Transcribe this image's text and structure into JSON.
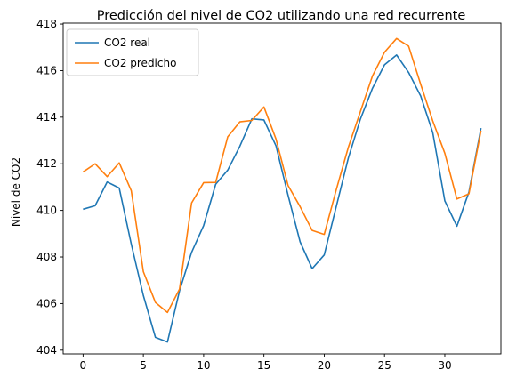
{
  "chart_data": {
    "type": "line",
    "title": "Predicción del nivel de CO2 utilizando una red recurrente",
    "xlabel": "",
    "ylabel": "Nivel de CO2",
    "xlim": [
      -1.65,
      34.65
    ],
    "ylim": [
      403.84,
      418.04
    ],
    "xticks": [
      0,
      5,
      10,
      15,
      20,
      25,
      30
    ],
    "yticks": [
      404,
      406,
      408,
      410,
      412,
      414,
      416,
      418
    ],
    "x": [
      0,
      1,
      2,
      3,
      4,
      5,
      6,
      7,
      8,
      9,
      10,
      11,
      12,
      13,
      14,
      15,
      16,
      17,
      18,
      19,
      20,
      21,
      22,
      23,
      24,
      25,
      26,
      27,
      28,
      29,
      30,
      31,
      32,
      33
    ],
    "series": [
      {
        "name": "CO2 real",
        "color": "#1f77b4",
        "values": [
          410.05,
          410.2,
          411.22,
          410.96,
          408.55,
          406.35,
          404.55,
          404.35,
          406.55,
          408.2,
          409.35,
          411.12,
          411.73,
          412.75,
          413.93,
          413.88,
          412.77,
          410.65,
          408.65,
          407.5,
          408.09,
          410.17,
          412.25,
          413.92,
          415.24,
          416.25,
          416.67,
          415.92,
          414.91,
          413.34,
          410.41,
          409.32,
          410.79,
          413.53
        ]
      },
      {
        "name": "CO2 predicho",
        "color": "#ff7f0e",
        "values": [
          411.65,
          412.0,
          411.45,
          412.04,
          410.84,
          407.37,
          406.05,
          405.62,
          406.62,
          410.32,
          411.19,
          411.2,
          413.16,
          413.8,
          413.86,
          414.44,
          413.06,
          411.07,
          410.16,
          409.14,
          408.97,
          410.89,
          412.71,
          414.24,
          415.77,
          416.79,
          417.38,
          417.05,
          415.41,
          413.84,
          412.45,
          410.49,
          410.71,
          413.42
        ]
      }
    ],
    "legend": {
      "placement": "upper-left"
    },
    "grid": false
  }
}
